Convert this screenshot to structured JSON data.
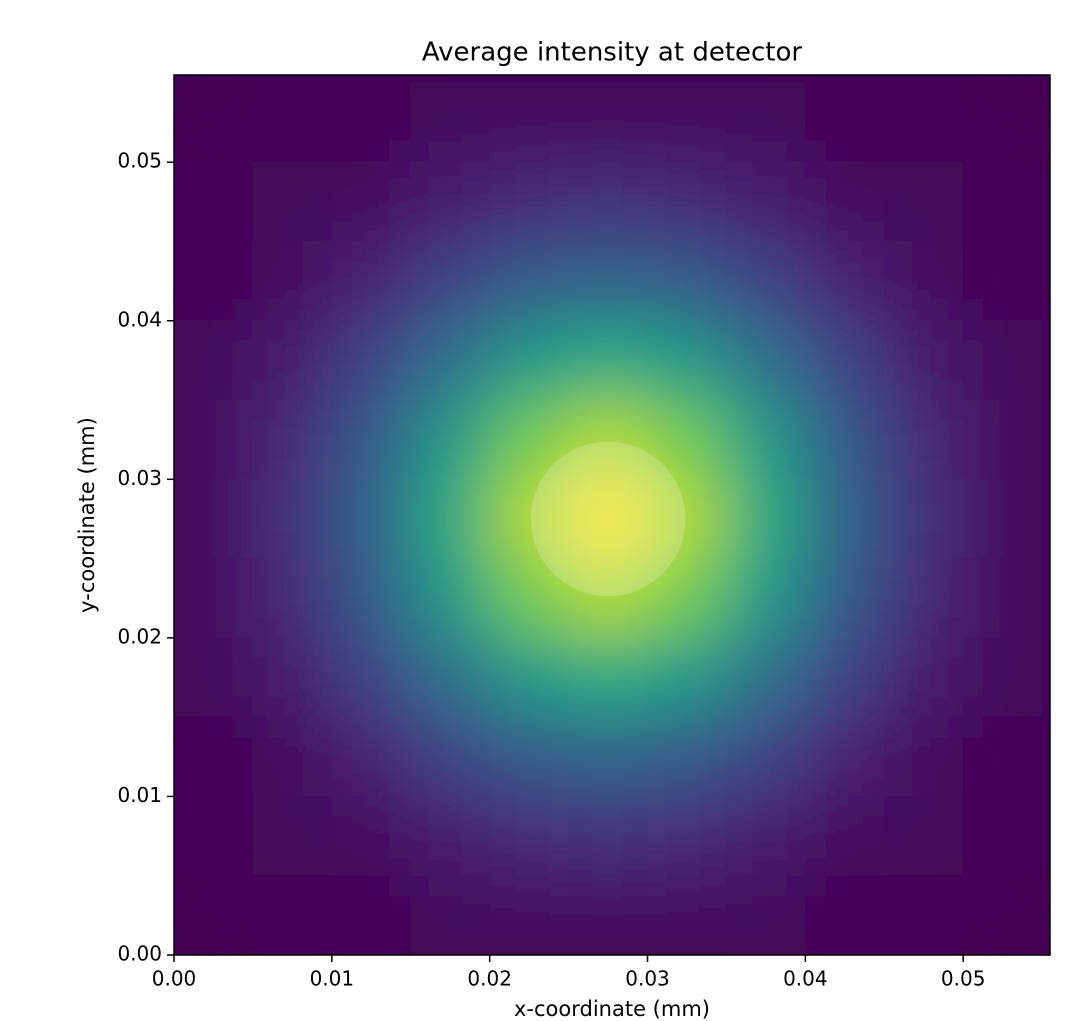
{
  "chart_data": {
    "type": "heatmap",
    "title": "Average intensity at detector",
    "xlabel": "x-coordinate (mm)",
    "ylabel": "y-coordinate (mm)",
    "colormap": "viridis",
    "zlim": [
      0,
      1
    ],
    "x": [
      0.0025,
      0.0075,
      0.0125,
      0.0175,
      0.0225,
      0.0275,
      0.0325,
      0.0375,
      0.0425,
      0.0475,
      0.0525
    ],
    "y": [
      0.0525,
      0.0475,
      0.0425,
      0.0375,
      0.0325,
      0.0275,
      0.0225,
      0.0175,
      0.0125,
      0.0075,
      0.0025
    ],
    "z": [
      [
        0,
        0.01,
        0.01,
        0.03,
        0.04,
        0.04,
        0.04,
        0.03,
        0.01,
        0.01,
        0
      ],
      [
        0.01,
        0.02,
        0.04,
        0.08,
        0.12,
        0.14,
        0.12,
        0.08,
        0.04,
        0.02,
        0.01
      ],
      [
        0.01,
        0.04,
        0.1,
        0.2,
        0.29,
        0.32,
        0.29,
        0.2,
        0.1,
        0.04,
        0.01
      ],
      [
        0.03,
        0.08,
        0.2,
        0.37,
        0.54,
        0.61,
        0.54,
        0.37,
        0.2,
        0.08,
        0.03
      ],
      [
        0.04,
        0.12,
        0.29,
        0.54,
        0.78,
        0.88,
        0.78,
        0.54,
        0.29,
        0.12,
        0.04
      ],
      [
        0.04,
        0.14,
        0.32,
        0.61,
        0.88,
        1,
        0.88,
        0.61,
        0.32,
        0.14,
        0.04
      ],
      [
        0.04,
        0.12,
        0.29,
        0.54,
        0.78,
        0.88,
        0.78,
        0.54,
        0.29,
        0.12,
        0.04
      ],
      [
        0.03,
        0.08,
        0.2,
        0.37,
        0.54,
        0.61,
        0.54,
        0.37,
        0.2,
        0.08,
        0.03
      ],
      [
        0.01,
        0.04,
        0.1,
        0.2,
        0.29,
        0.32,
        0.29,
        0.2,
        0.1,
        0.04,
        0.01
      ],
      [
        0.01,
        0.02,
        0.04,
        0.08,
        0.12,
        0.14,
        0.12,
        0.08,
        0.04,
        0.02,
        0.01
      ],
      [
        0,
        0.01,
        0.01,
        0.03,
        0.04,
        0.04,
        0.04,
        0.03,
        0.01,
        0.01,
        0
      ]
    ],
    "circle": {
      "cx": 0.0275,
      "cy": 0.0275,
      "r": 0.0049
    },
    "xlim": [
      0,
      0.0555
    ],
    "ylim": [
      0,
      0.0555
    ],
    "xticks": [
      {
        "value": 0,
        "label": "0.00"
      },
      {
        "value": 0.01,
        "label": "0.01"
      },
      {
        "value": 0.02,
        "label": "0.02"
      },
      {
        "value": 0.03,
        "label": "0.03"
      },
      {
        "value": 0.04,
        "label": "0.04"
      },
      {
        "value": 0.05,
        "label": "0.05"
      }
    ],
    "yticks": [
      {
        "value": 0,
        "label": "0.00"
      },
      {
        "value": 0.01,
        "label": "0.01"
      },
      {
        "value": 0.02,
        "label": "0.02"
      },
      {
        "value": 0.03,
        "label": "0.03"
      },
      {
        "value": 0.04,
        "label": "0.04"
      },
      {
        "value": 0.05,
        "label": "0.05"
      }
    ]
  }
}
